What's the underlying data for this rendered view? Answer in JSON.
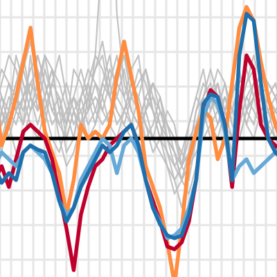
{
  "chart_data": {
    "type": "line",
    "title": "",
    "xlabel": "",
    "ylabel": "",
    "grid": true,
    "legend": "none",
    "x": [
      0,
      1,
      2,
      3,
      4,
      5,
      6,
      7,
      8,
      9,
      10,
      11,
      12,
      13,
      14,
      15,
      16,
      17,
      18,
      19,
      20,
      21,
      22,
      23,
      24,
      25,
      26,
      27,
      28,
      29,
      30,
      31,
      32,
      33,
      34,
      35,
      36,
      37,
      38,
      39,
      40
    ],
    "xlim": [
      0,
      40
    ],
    "ylim": [
      -1.0,
      1.0
    ],
    "reference_line": {
      "value": 0.0,
      "color": "#000000"
    },
    "colors": {
      "background": "#ffffff",
      "grid": "#e6e6e6",
      "background_series": "#bdbdbd",
      "reference": "#000000"
    },
    "background_series": [
      {
        "values": [
          0.3,
          0.1,
          0.2,
          0.4,
          0.5,
          0.3,
          0.6,
          0.4,
          0.2,
          0.1,
          0.0,
          0.2,
          0.3,
          0.4,
          0.6,
          0.5,
          0.3,
          0.2,
          0.1,
          0.0,
          0.1,
          0.2,
          0.3,
          0.2,
          0.1,
          0.0,
          -0.1,
          -0.2,
          -0.1,
          0.0,
          0.1,
          0.2,
          0.3,
          0.1,
          0.0,
          0.2,
          0.3,
          0.5,
          0.4,
          0.3,
          0.2
        ]
      },
      {
        "values": [
          -0.1,
          0.2,
          0.4,
          0.3,
          0.1,
          0.6,
          0.2,
          0.3,
          0.5,
          0.2,
          -0.1,
          0.0,
          0.3,
          0.1,
          0.2,
          0.4,
          0.3,
          0.5,
          0.6,
          0.3,
          0.2,
          0.1,
          0.0,
          -0.1,
          -0.2,
          -0.3,
          -0.2,
          0.0,
          0.1,
          0.3,
          0.4,
          0.2,
          0.1,
          0.0,
          0.2,
          0.4,
          0.5,
          0.3,
          0.1,
          0.0,
          -0.1
        ]
      },
      {
        "values": [
          0.5,
          0.3,
          0.1,
          -0.1,
          0.0,
          0.2,
          0.4,
          0.6,
          0.3,
          0.0,
          -0.2,
          -0.1,
          0.1,
          0.2,
          0.4,
          0.3,
          0.1,
          0.0,
          0.2,
          0.3,
          0.4,
          0.5,
          0.2,
          0.0,
          -0.1,
          -0.2,
          -0.3,
          -0.1,
          0.2,
          0.3,
          0.1,
          0.0,
          0.2,
          0.4,
          0.3,
          0.1,
          0.0,
          0.2,
          0.3,
          0.2,
          0.1
        ]
      },
      {
        "values": [
          0.2,
          0.4,
          0.6,
          0.5,
          0.3,
          0.1,
          0.0,
          0.2,
          0.4,
          0.6,
          0.3,
          0.1,
          0.2,
          0.3,
          0.5,
          0.7,
          0.4,
          0.2,
          0.1,
          0.3,
          0.5,
          0.4,
          0.2,
          0.0,
          -0.2,
          -0.4,
          -0.3,
          -0.1,
          0.0,
          0.2,
          0.3,
          0.4,
          0.1,
          -0.1,
          0.0,
          0.2,
          0.4,
          0.3,
          0.2,
          0.1,
          0.0
        ]
      },
      {
        "values": [
          0.0,
          0.1,
          0.3,
          0.2,
          0.5,
          0.7,
          0.4,
          0.2,
          0.0,
          -0.1,
          0.1,
          0.3,
          0.2,
          0.0,
          0.1,
          0.3,
          0.5,
          0.4,
          0.6,
          0.4,
          0.2,
          0.0,
          0.1,
          0.3,
          0.1,
          -0.1,
          -0.3,
          -0.4,
          -0.2,
          0.1,
          0.3,
          0.5,
          0.4,
          0.2,
          0.1,
          0.3,
          0.2,
          0.1,
          0.3,
          0.4,
          0.2
        ]
      },
      {
        "values": [
          0.4,
          0.2,
          0.0,
          0.2,
          0.3,
          0.4,
          0.5,
          0.3,
          0.1,
          0.2,
          0.4,
          0.2,
          0.0,
          0.3,
          0.5,
          0.6,
          0.3,
          0.1,
          0.2,
          0.4,
          0.3,
          0.1,
          -0.1,
          0.0,
          0.2,
          0.1,
          -0.2,
          -0.3,
          0.0,
          0.3,
          0.5,
          0.3,
          0.2,
          0.4,
          0.3,
          0.1,
          0.3,
          0.5,
          0.3,
          0.2,
          0.1
        ]
      },
      {
        "values": [
          0.1,
          0.3,
          0.2,
          0.6,
          0.4,
          0.2,
          0.3,
          0.1,
          0.4,
          0.3,
          0.1,
          0.5,
          0.4,
          0.2,
          0.3,
          0.2,
          0.4,
          0.6,
          0.3,
          0.1,
          0.0,
          0.2,
          0.4,
          0.3,
          0.0,
          -0.2,
          -0.1,
          0.1,
          0.3,
          0.2,
          0.0,
          0.1,
          0.3,
          0.2,
          0.4,
          0.5,
          0.3,
          0.1,
          0.2,
          0.3,
          0.4
        ]
      },
      {
        "values": [
          -0.2,
          0.0,
          0.2,
          0.1,
          0.3,
          0.5,
          0.6,
          0.4,
          0.2,
          0.3,
          0.0,
          0.2,
          0.1,
          0.4,
          0.2,
          0.1,
          0.2,
          0.3,
          0.5,
          0.2,
          0.1,
          0.3,
          0.2,
          0.1,
          -0.1,
          -0.3,
          -0.5,
          -0.2,
          0.0,
          0.1,
          0.2,
          0.4,
          0.2,
          0.0,
          0.1,
          0.3,
          0.4,
          0.2,
          0.0,
          0.1,
          0.2
        ]
      },
      {
        "values": [
          0.3,
          0.5,
          0.4,
          0.2,
          0.1,
          0.3,
          0.2,
          0.5,
          0.3,
          0.1,
          0.2,
          0.0,
          0.3,
          0.5,
          0.4,
          0.2,
          0.1,
          0.4,
          0.3,
          0.5,
          0.6,
          0.2,
          0.0,
          0.2,
          0.1,
          0.0,
          -0.2,
          -0.1,
          0.2,
          0.4,
          0.3,
          0.1,
          0.2,
          0.3,
          0.5,
          0.2,
          0.1,
          0.3,
          0.4,
          0.3,
          0.1
        ]
      },
      {
        "values": [
          0.1,
          -0.1,
          0.2,
          0.4,
          0.6,
          0.3,
          0.1,
          0.3,
          0.5,
          0.4,
          0.2,
          0.3,
          0.5,
          0.3,
          0.1,
          0.4,
          0.6,
          0.3,
          0.2,
          0.1,
          0.3,
          0.5,
          0.3,
          0.1,
          0.0,
          -0.1,
          -0.2,
          0.1,
          0.3,
          0.5,
          0.2,
          0.3,
          0.1,
          0.2,
          0.2,
          0.4,
          0.6,
          0.4,
          0.2,
          0.0,
          0.1
        ]
      },
      {
        "values": [
          0.0,
          0.2,
          0.1,
          0.3,
          0.2,
          0.4,
          0.3,
          0.6,
          0.5,
          0.2,
          0.1,
          0.3,
          0.1,
          0.2,
          0.6,
          1.4,
          2.2,
          0.9,
          0.4,
          0.2,
          0.1,
          0.3,
          0.4,
          0.2,
          0.0,
          -0.1,
          -0.3,
          -0.2,
          0.1,
          0.2,
          0.3,
          0.2,
          0.4,
          0.1,
          0.0,
          0.2,
          0.3,
          0.4,
          0.1,
          0.2,
          0.3
        ]
      }
    ],
    "series": [
      {
        "color": "#ff8c3f",
        "values": [
          0.35,
          -0.05,
          0.1,
          0.3,
          0.55,
          0.8,
          0.4,
          0.05,
          -0.1,
          -0.25,
          -0.55,
          -0.3,
          0.1,
          0.0,
          0.05,
          0.0,
          0.1,
          0.45,
          0.7,
          0.45,
          0.2,
          -0.2,
          -0.35,
          -0.5,
          -0.75,
          -1.05,
          -0.65,
          -0.15,
          0.05,
          0.2,
          0.15,
          -0.15,
          0.0,
          0.4,
          0.8,
          0.95,
          0.85,
          0.55,
          0.3,
          0.1,
          -0.05
        ]
      },
      {
        "color": "#c0002c",
        "values": [
          -0.3,
          -0.2,
          -0.35,
          -0.15,
          0.05,
          0.1,
          0.05,
          0.0,
          -0.15,
          -0.4,
          -0.65,
          -0.95,
          -0.55,
          -0.35,
          -0.2,
          -0.15,
          -0.05,
          0.0,
          0.05,
          0.1,
          -0.05,
          -0.3,
          -0.45,
          -0.6,
          -0.78,
          -0.8,
          -0.75,
          -0.6,
          -0.3,
          0.2,
          0.35,
          0.3,
          0.1,
          -0.35,
          0.2,
          0.6,
          0.5,
          0.1,
          0.0,
          -0.05,
          -0.1
        ]
      },
      {
        "color": "#67a9d6",
        "values": [
          -0.2,
          -0.1,
          -0.15,
          -0.2,
          -0.1,
          -0.05,
          -0.1,
          -0.15,
          -0.25,
          -0.45,
          -0.55,
          -0.5,
          -0.3,
          -0.2,
          -0.1,
          0.0,
          -0.05,
          -0.25,
          -0.05,
          0.0,
          -0.1,
          -0.3,
          -0.5,
          -0.6,
          -0.72,
          -0.7,
          -0.65,
          -0.5,
          -0.3,
          0.15,
          0.3,
          0.25,
          0.05,
          -0.3,
          -0.2,
          -0.15,
          -0.25,
          -0.2,
          -0.15,
          -0.1,
          -0.05
        ]
      },
      {
        "color": "#1f6fad",
        "values": [
          -0.2,
          -0.32,
          -0.25,
          -0.3,
          -0.1,
          -0.05,
          -0.08,
          -0.1,
          -0.25,
          -0.45,
          -0.6,
          -0.5,
          -0.35,
          -0.25,
          -0.15,
          -0.05,
          -0.1,
          -0.05,
          0.05,
          0.1,
          -0.05,
          -0.3,
          -0.5,
          -0.62,
          -0.7,
          -0.72,
          -0.7,
          -0.55,
          -0.3,
          0.25,
          0.32,
          0.3,
          0.1,
          -0.3,
          0.6,
          0.9,
          0.85,
          0.4,
          0.0,
          -0.1,
          -0.15
        ]
      }
    ]
  }
}
